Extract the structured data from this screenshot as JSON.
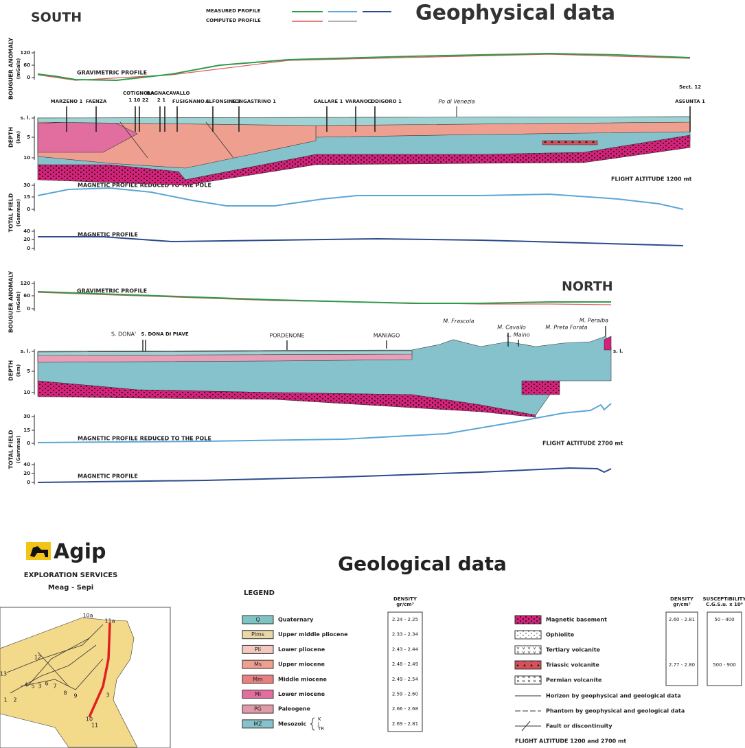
{
  "header": {
    "south": "SOUTH",
    "north": "NORTH",
    "title": "Geophysical data",
    "measured": "MEASURED PROFILE",
    "computed": "COMPUTED PROFILE"
  },
  "section_1": {
    "bouguer": {
      "axis_label": "BOUGUER ANOMALY",
      "unit": "(mGals)",
      "ticks": [
        "120",
        "60",
        "0"
      ],
      "profile": "GRAVIMETRIC PROFILE"
    },
    "wells": [
      "MARZENO 1",
      "FAENZA",
      "COTIGNOLA",
      "1 10 22",
      "BAGNACAVALLO",
      "2 1",
      "FUSIGNANO 1",
      "ALFONSINE 1",
      "LONGASTRINO 1",
      "GALLARE 1",
      "VARANO 1",
      "CODIGORO 1",
      "Po di Venezia",
      "Sect. 12",
      "ASSUNTA 1"
    ],
    "depth": {
      "axis_label": "DEPTH",
      "unit": "(km)",
      "ticks": [
        "s. l.",
        "5",
        "10"
      ]
    },
    "flight_altitude": "FLIGHT ALTITUDE 1200 mt",
    "total_field": {
      "axis_label": "TOTAL FIELD",
      "unit": "(Gammas)",
      "ticks": [
        "30",
        "15",
        "0"
      ],
      "profile": "MAGNETIC PROFILE REDUCED TO THE POLE"
    },
    "magnetic": {
      "ticks": [
        "40",
        "20",
        "0"
      ],
      "profile": "MAGNETIC PROFILE"
    }
  },
  "section_2": {
    "bouguer": {
      "axis_label": "BOUGUER ANOMALY",
      "unit": "(mGals)",
      "ticks": [
        "120",
        "60",
        "0"
      ],
      "profile": "GRAVIMETRIC PROFILE"
    },
    "wells": [
      "S. DONA'",
      "S. DONA DI PIAVE",
      "PORDENONE",
      "MANIAGO",
      "M. Frascola",
      "M. Cavallo",
      "L. Maino",
      "M. Preta Forata",
      "M. Peraiba"
    ],
    "depth": {
      "axis_label": "DEPTH",
      "unit": "(km)",
      "ticks": [
        "s. l.",
        "5",
        "10"
      ],
      "right": "s. l."
    },
    "flight_altitude": "FLIGHT ALTITUDE 2700 mt",
    "total_field": {
      "axis_label": "TOTAL FIELD",
      "unit": "(Gammas)",
      "ticks": [
        "30",
        "15",
        "0"
      ],
      "profile": "MAGNETIC PROFILE REDUCED TO THE POLE"
    },
    "magnetic": {
      "ticks": [
        "40",
        "20",
        "0"
      ],
      "profile": "MAGNETIC PROFILE"
    }
  },
  "logo": {
    "name": "Agip",
    "line_1": "EXPLORATION SERVICES",
    "line_2": "Meag - Sepi"
  },
  "geology": {
    "title": "Geological data",
    "legend_title": "LEGEND",
    "density_header": "DENSITY",
    "density_unit": "gr/cm³",
    "susceptibility_header": "SUSCEPTIBILITY",
    "susceptibility_unit": "C.G.S.u. x 10⁶",
    "left": [
      {
        "code": "Q",
        "name": "Quaternary",
        "density": "2.24 - 2.25"
      },
      {
        "code": "Plms",
        "name": "Upper middle pliocene",
        "density": "2.33 - 2.34"
      },
      {
        "code": "Pli",
        "name": "Lower pliocene",
        "density": "2.43 - 2.44"
      },
      {
        "code": "Ms",
        "name": "Upper miocene",
        "density": "2.48 - 2.49"
      },
      {
        "code": "Mm",
        "name": "Middle miocene",
        "density": "2.49 - 2.54"
      },
      {
        "code": "Mi",
        "name": "Lower miocene",
        "density": "2.59 - 2.60"
      },
      {
        "code": "PG",
        "name": "Paleogene",
        "density": "2.66 - 2.68"
      },
      {
        "code": "MZ",
        "name": "Mesozoic",
        "density": "2.69 - 2.81"
      }
    ],
    "brace": [
      "K",
      "J",
      "TR"
    ],
    "right": [
      {
        "name": "Magnetic basement",
        "density": "2.60 - 2.81",
        "susceptibility": "50 - 400"
      },
      {
        "name": "Ophiolite"
      },
      {
        "name": "Tertiary volcanite"
      },
      {
        "name": "Triassic volcanite",
        "density": "2.77 - 2.80",
        "susceptibility": "500 - 900"
      },
      {
        "name": "Permian volcanite"
      }
    ],
    "lines": [
      "Horizon by geophysical and geological data",
      "Phantom by geophysical and geological data",
      "Fault or discontinuity"
    ],
    "flight_altitude": "FLIGHT ALTITUDE 1200 and 2700 mt"
  },
  "map": {
    "labels": [
      "10a",
      "11a",
      "12",
      "13",
      "1",
      "2",
      "4",
      "5",
      "3",
      "6",
      "7",
      "8",
      "9",
      "3",
      "10",
      "11"
    ]
  }
}
